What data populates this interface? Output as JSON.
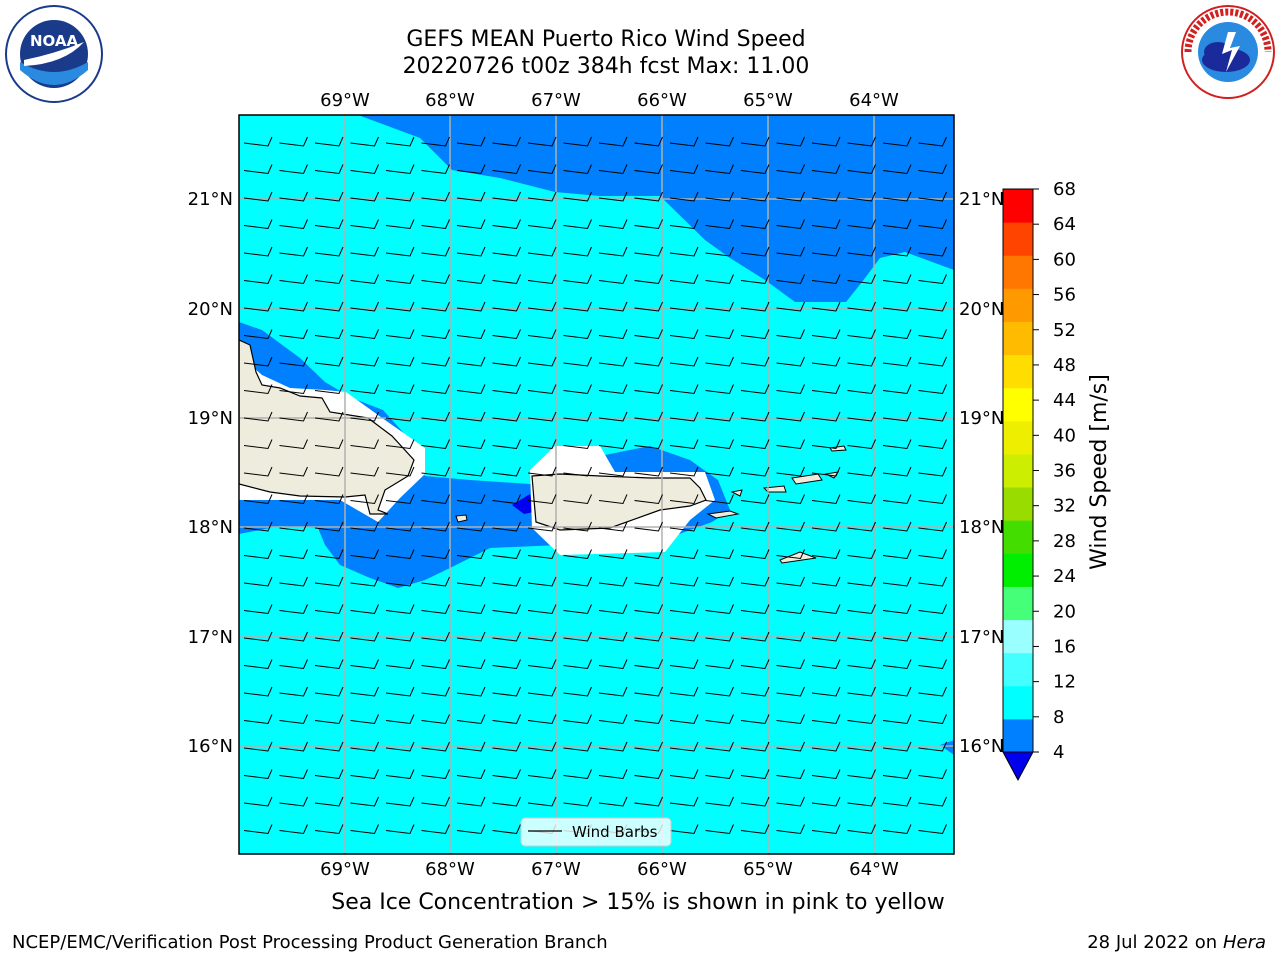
{
  "title_line1": "GEFS MEAN Puerto Rico Wind Speed",
  "title_line2": "20220726 t00z 384h fcst   Max: 11.00",
  "lon_ticks": [
    "69°W",
    "68°W",
    "67°W",
    "66°W",
    "65°W",
    "64°W"
  ],
  "lat_ticks": [
    "21°N",
    "20°N",
    "19°N",
    "18°N",
    "17°N",
    "16°N"
  ],
  "legend_label": "Wind Barbs",
  "colorbar": {
    "label": "Wind Speed [m/s]",
    "ticks": [
      "68",
      "64",
      "60",
      "56",
      "52",
      "48",
      "44",
      "40",
      "36",
      "32",
      "28",
      "24",
      "20",
      "16",
      "12",
      "8",
      "4"
    ],
    "colors": [
      "#0000ee",
      "#0080ff",
      "#00ffff",
      "#44ffff",
      "#99ffff",
      "#44ff77",
      "#00ee00",
      "#44dd00",
      "#99dd00",
      "#ccee00",
      "#eeee00",
      "#ffff00",
      "#ffdd00",
      "#ffbb00",
      "#ff9900",
      "#ff7700",
      "#ff4400",
      "#ff0000"
    ]
  },
  "subtitle": "Sea Ice Concentration > 15% is shown in pink to yellow",
  "footer_left": "NCEP/EMC/Verification Post Processing Product Generation Branch",
  "footer_right_prefix": "28 Jul 2022 on ",
  "footer_right_host": "Hera",
  "map_colors": {
    "ocean_light": "#00ffff",
    "ocean_dark": "#0080ff",
    "deep": "#0000ee",
    "land": "#eeecdc",
    "grid": "#b0b0b0"
  }
}
